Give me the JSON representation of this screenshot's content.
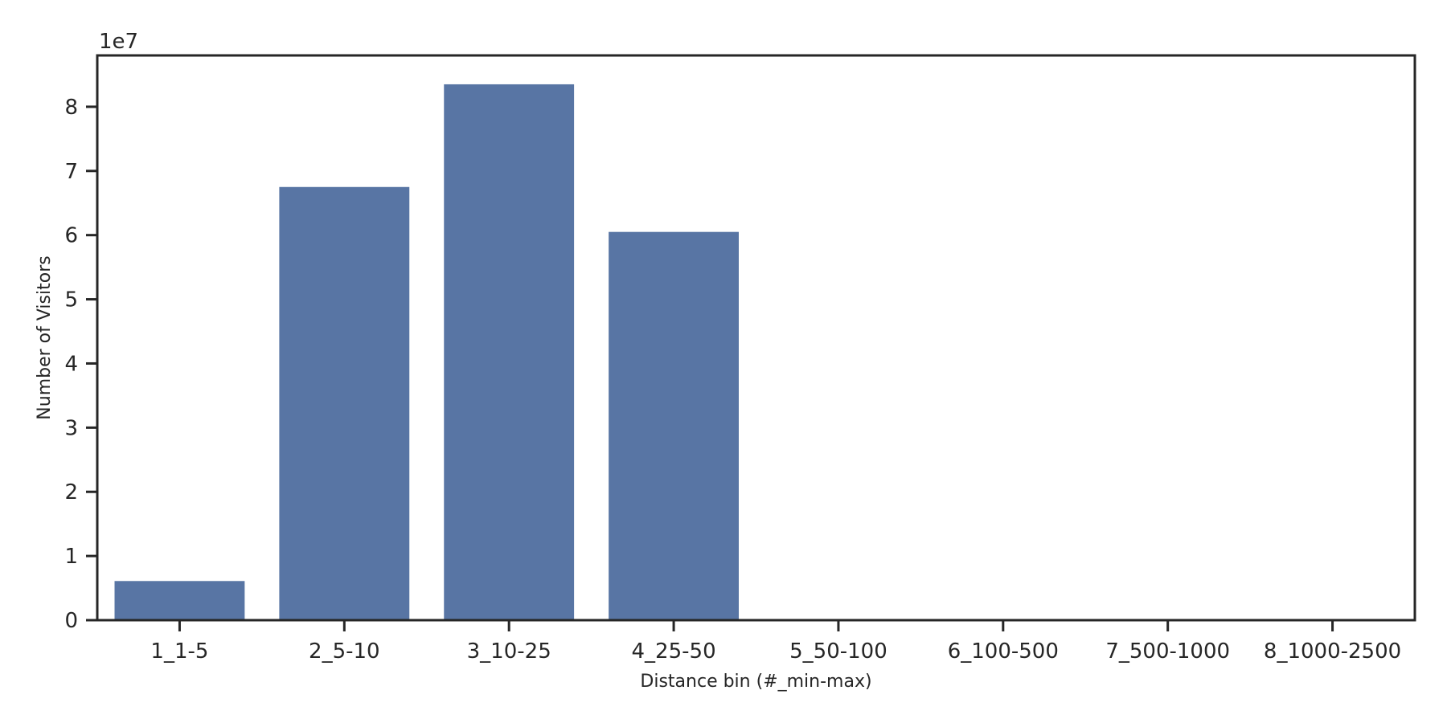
{
  "chart_data": {
    "type": "bar",
    "categories": [
      "1_1-5",
      "2_5-10",
      "3_10-25",
      "4_25-50",
      "5_50-100",
      "6_100-500",
      "7_500-1000",
      "8_1000-2500"
    ],
    "values": [
      6100000,
      67500000,
      83500000,
      60500000,
      0,
      0,
      0,
      0
    ],
    "title": "",
    "xlabel": "Distance bin (#_min-max)",
    "ylabel": "Number of Visitors",
    "y_offset_label": "1e7",
    "y_scale": 10000000,
    "ylim": [
      0,
      88000000
    ],
    "yticks": [
      0,
      1,
      2,
      3,
      4,
      5,
      6,
      7,
      8
    ],
    "grid": false,
    "legend": "none",
    "bar_color": "#5875a4",
    "axis_color": "#262626"
  }
}
